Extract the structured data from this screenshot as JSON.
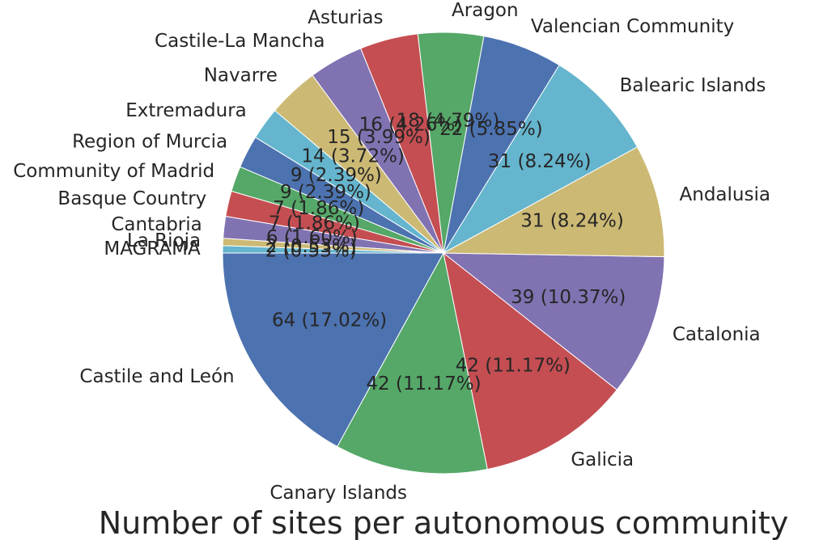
{
  "chart_data": {
    "type": "pie",
    "title": "Number of sites per autonomous community",
    "start_angle_deg": 180,
    "direction": "counterclockwise",
    "colors": [
      "#4c72b0",
      "#55a868",
      "#c44e52",
      "#8172b2",
      "#ccb974",
      "#64b5cd"
    ],
    "slices": [
      {
        "label": "Castile and León",
        "value": 64,
        "display": "64 (17.02%)"
      },
      {
        "label": "Canary Islands",
        "value": 42,
        "display": "42 (11.17%)"
      },
      {
        "label": "Galicia",
        "value": 42,
        "display": "42 (11.17%)"
      },
      {
        "label": "Catalonia",
        "value": 39,
        "display": "39 (10.37%)"
      },
      {
        "label": "Andalusia",
        "value": 31,
        "display": "31 (8.24%)"
      },
      {
        "label": "Balearic Islands",
        "value": 31,
        "display": "31 (8.24%)"
      },
      {
        "label": "Valencian Community",
        "value": 22,
        "display": "22 (5.85%)"
      },
      {
        "label": "Aragon",
        "value": 18,
        "display": "18 (4.79%)"
      },
      {
        "label": "Asturias",
        "value": 16,
        "display": "16 (4.26%)"
      },
      {
        "label": "Castile-La Mancha",
        "value": 15,
        "display": "15 (3.99%)"
      },
      {
        "label": "Navarre",
        "value": 14,
        "display": "14 (3.72%)"
      },
      {
        "label": "Extremadura",
        "value": 9,
        "display": "9 (2.39%)"
      },
      {
        "label": "Region of Murcia",
        "value": 9,
        "display": "9 (2.39%)"
      },
      {
        "label": "Community of Madrid",
        "value": 7,
        "display": "7 (1.86%)"
      },
      {
        "label": "Basque Country",
        "value": 7,
        "display": "7 (1.86%)"
      },
      {
        "label": "Cantabria",
        "value": 6,
        "display": "6 (1.60%)"
      },
      {
        "label": "La Rioja",
        "value": 2,
        "display": "2 (0.53%)"
      },
      {
        "label": "MAGRAMA",
        "value": 2,
        "display": "2 (0.53%)"
      }
    ]
  }
}
